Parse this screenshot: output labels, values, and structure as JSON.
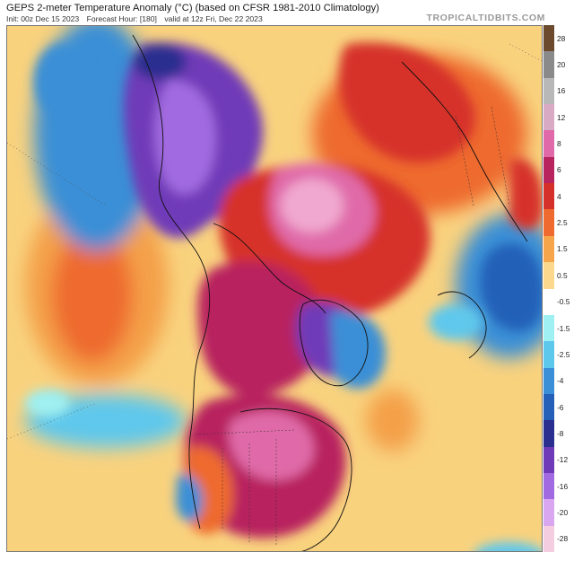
{
  "header": {
    "title": "GEPS 2-meter Temperature Anomaly (°C) (based on CFSR 1981-2010 Climatology)",
    "init": "Init: 00z Dec 15 2023",
    "forecast_hour": "Forecast Hour: [180]",
    "valid": "valid at 12z Fri, Dec 22 2023",
    "brand": "TROPICALTIDBITS.COM"
  },
  "colorbar": {
    "labels": [
      "28",
      "20",
      "16",
      "12",
      "8",
      "6",
      "4",
      "2.5",
      "1.5",
      "0.5",
      "-0.5",
      "-1.5",
      "-2.5",
      "-4",
      "-6",
      "-8",
      "-12",
      "-16",
      "-20",
      "-28"
    ],
    "colors": [
      "#6b4a2e",
      "#8a8a8a",
      "#b8b8b8",
      "#d9aac4",
      "#e06aa9",
      "#b8245e",
      "#d6302b",
      "#ee6a2e",
      "#f6a54a",
      "#fbd88c",
      "#ffffff",
      "#9ff0f2",
      "#5ec8ec",
      "#3a8fd6",
      "#2460b8",
      "#2a2f8f",
      "#6f3ab8",
      "#a26ae0",
      "#d9a6f0",
      "#f4cde0"
    ]
  },
  "map": {
    "colors": {
      "warm_light": "#f9d27e",
      "warm": "#f4a04a",
      "orange": "#ee6a2e",
      "red": "#d6302b",
      "dark_red": "#b8245e",
      "pink": "#e06aa9",
      "light_pink": "#f0a8d0",
      "cool_light": "#9ff0f2",
      "cool": "#5ec8ec",
      "blue": "#3a8fd6",
      "dark_blue": "#2460b8",
      "navy": "#2a2f8f",
      "purple": "#6f3ab8",
      "lavender": "#a26ae0"
    }
  }
}
